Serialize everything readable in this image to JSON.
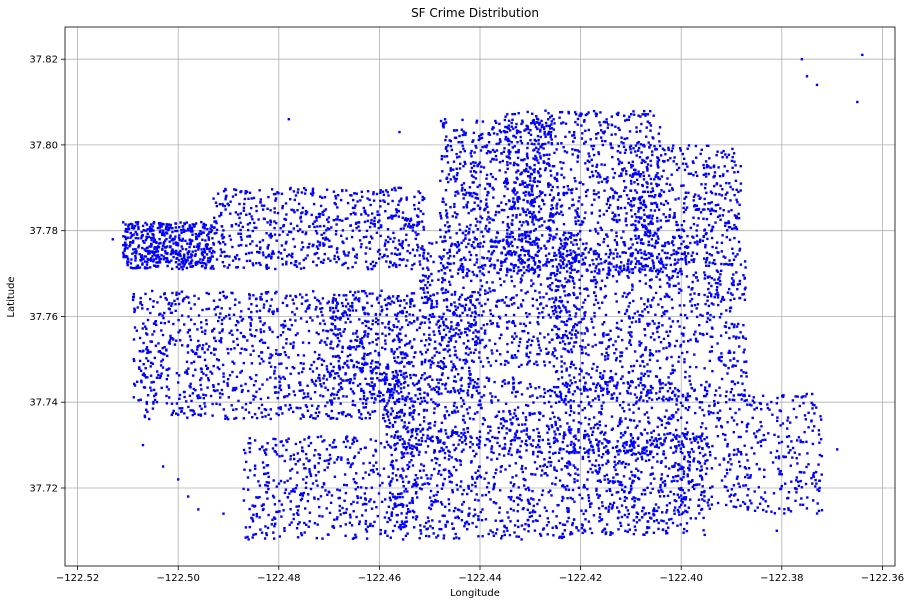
{
  "chart_data": {
    "type": "scatter",
    "title": "SF Crime Distribution",
    "xlabel": "Longitude",
    "ylabel": "Latitude",
    "xlim": [
      -122.5225,
      -122.3575
    ],
    "ylim": [
      37.7018,
      37.8275
    ],
    "xticks": [
      -122.52,
      -122.5,
      -122.48,
      -122.46,
      -122.44,
      -122.42,
      -122.4,
      -122.38,
      -122.36
    ],
    "xtick_labels": [
      "−122.52",
      "−122.50",
      "−122.48",
      "−122.46",
      "−122.44",
      "−122.42",
      "−122.40",
      "−122.38",
      "−122.36"
    ],
    "yticks": [
      37.72,
      37.74,
      37.76,
      37.78,
      37.8,
      37.82
    ],
    "ytick_labels": [
      "37.72",
      "37.74",
      "37.76",
      "37.78",
      "37.80",
      "37.82"
    ],
    "grid": true,
    "marker_color": "#0000ff",
    "series": [
      {
        "regions": [
          {
            "lon": [
              -122.511,
              -122.493
            ],
            "lat": [
              37.771,
              37.782
            ],
            "n": 500
          },
          {
            "lon": [
              -122.493,
              -122.451
            ],
            "lat": [
              37.771,
              37.79
            ],
            "n": 650
          },
          {
            "lon": [
              -122.509,
              -122.453
            ],
            "lat": [
              37.736,
              37.766
            ],
            "n": 1100
          },
          {
            "lon": [
              -122.47,
              -122.44
            ],
            "lat": [
              37.74,
              37.766
            ],
            "n": 450
          },
          {
            "lon": [
              -122.448,
              -122.425
            ],
            "lat": [
              37.77,
              37.806
            ],
            "n": 650
          },
          {
            "lon": [
              -122.435,
              -122.404
            ],
            "lat": [
              37.77,
              37.808
            ],
            "n": 900
          },
          {
            "lon": [
              -122.41,
              -122.388
            ],
            "lat": [
              37.772,
              37.8
            ],
            "n": 450
          },
          {
            "lon": [
              -122.452,
              -122.42
            ],
            "lat": [
              37.748,
              37.778
            ],
            "n": 600
          },
          {
            "lon": [
              -122.425,
              -122.387
            ],
            "lat": [
              37.74,
              37.775
            ],
            "n": 850
          },
          {
            "lon": [
              -122.46,
              -122.4
            ],
            "lat": [
              37.728,
              37.746
            ],
            "n": 700
          },
          {
            "lon": [
              -122.487,
              -122.455
            ],
            "lat": [
              37.708,
              37.732
            ],
            "n": 450
          },
          {
            "lon": [
              -122.458,
              -122.42
            ],
            "lat": [
              37.708,
              37.734
            ],
            "n": 650
          },
          {
            "lon": [
              -122.42,
              -122.395
            ],
            "lat": [
              37.709,
              37.733
            ],
            "n": 500
          },
          {
            "lon": [
              -122.4,
              -122.372
            ],
            "lat": [
              37.714,
              37.742
            ],
            "n": 400
          }
        ],
        "scattered": [
          [
            -122.513,
            37.778
          ],
          [
            -122.507,
            37.73
          ],
          [
            -122.503,
            37.725
          ],
          [
            -122.5,
            37.722
          ],
          [
            -122.498,
            37.718
          ],
          [
            -122.496,
            37.715
          ],
          [
            -122.491,
            37.714
          ],
          [
            -122.486,
            37.708
          ],
          [
            -122.478,
            37.806
          ],
          [
            -122.456,
            37.803
          ],
          [
            -122.381,
            37.71
          ],
          [
            -122.376,
            37.82
          ],
          [
            -122.375,
            37.816
          ],
          [
            -122.373,
            37.814
          ],
          [
            -122.369,
            37.729
          ],
          [
            -122.365,
            37.81
          ],
          [
            -122.364,
            37.821
          ]
        ]
      }
    ]
  }
}
